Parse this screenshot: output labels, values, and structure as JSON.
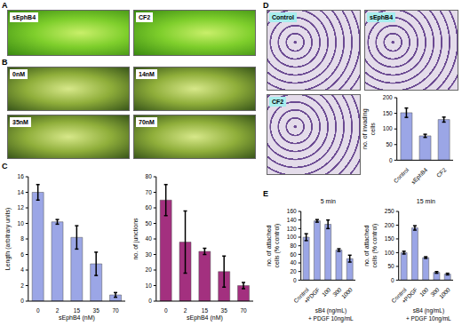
{
  "panel_labels": [
    "A",
    "B",
    "C",
    "D",
    "E"
  ],
  "images": {
    "A": [
      "sEphB4",
      "CF2"
    ],
    "B": [
      "0nM",
      "14nM",
      "35nM",
      "70nM"
    ],
    "D": [
      "Control",
      "sEphB4",
      "CF2"
    ]
  },
  "chart_data": [
    {
      "type": "bar",
      "x_label": "sEphB4 (nM)",
      "y_label": "Length (arbitrary units)",
      "categories": [
        "0",
        "2",
        "15",
        "35",
        "70"
      ],
      "values": [
        14,
        10.2,
        8.2,
        4.8,
        0.8
      ],
      "errors": [
        1,
        0.3,
        1.5,
        1.5,
        0.3
      ],
      "color": "#9ba6e6",
      "ylim": [
        0,
        16
      ],
      "yticks": [
        0,
        2,
        4,
        6,
        8,
        10,
        12,
        14,
        16
      ]
    },
    {
      "type": "bar",
      "x_label": "sEphB4 (nM)",
      "y_label": "no. of junctions",
      "categories": [
        "0",
        "2",
        "15",
        "35",
        "70"
      ],
      "values": [
        65,
        38,
        32,
        19,
        10
      ],
      "errors": [
        10,
        20,
        2,
        10,
        2
      ],
      "color": "#a3307f",
      "ylim": [
        0,
        80
      ],
      "yticks": [
        0,
        10,
        20,
        30,
        40,
        50,
        60,
        70,
        80
      ]
    },
    {
      "type": "bar",
      "y_label": "no. of invading cells",
      "categories": [
        "Control",
        "sEphB4",
        "CF2"
      ],
      "values": [
        152,
        78,
        130
      ],
      "errors": [
        15,
        5,
        8
      ],
      "color": "#9ba6e6",
      "ylim": [
        0,
        200
      ],
      "yticks": [
        0,
        50,
        100,
        150,
        200
      ]
    },
    {
      "type": "bar",
      "title": "5 min",
      "y_label": "no. of attached cells (% control)",
      "categories": [
        "Control",
        "+PDGF",
        "100",
        "300",
        "1000"
      ],
      "values": [
        100,
        138,
        130,
        70,
        50
      ],
      "errors": [
        8,
        3,
        10,
        3,
        8
      ],
      "annotations": [
        "sB4 (ng/mL)",
        "+ PDGF 10ng/mL"
      ],
      "color": "#9ba6e6",
      "ylim": [
        0,
        160
      ],
      "yticks": [
        0,
        20,
        40,
        60,
        80,
        100,
        120,
        140,
        160
      ]
    },
    {
      "type": "bar",
      "title": "15 min",
      "y_label": "no. of attached cells (% control)",
      "categories": [
        "Control",
        "+PDGF",
        "100",
        "300",
        "1000"
      ],
      "values": [
        100,
        190,
        82,
        28,
        22
      ],
      "errors": [
        5,
        8,
        3,
        3,
        3
      ],
      "annotations": [
        "sB4 (ng/mL)",
        "+ PDGF 10ng/mL"
      ],
      "color": "#9ba6e6",
      "ylim": [
        0,
        250
      ],
      "yticks": [
        0,
        50,
        100,
        150,
        200,
        250
      ]
    }
  ]
}
